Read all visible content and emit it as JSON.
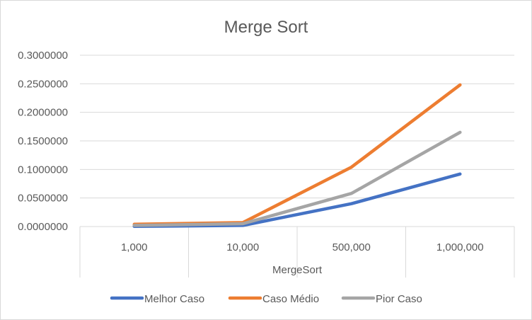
{
  "chart_data": {
    "type": "line",
    "title": "Merge Sort",
    "xlabel": "MergeSort",
    "ylabel": "",
    "categories": [
      "1,000",
      "10,000",
      "500,000",
      "1,000,000"
    ],
    "y_ticks": [
      "0.0000000",
      "0.0500000",
      "0.1000000",
      "0.1500000",
      "0.2000000",
      "0.2500000",
      "0.3000000"
    ],
    "ylim": [
      0,
      0.3
    ],
    "grid": true,
    "legend_position": "bottom",
    "series": [
      {
        "name": "Melhor Caso",
        "color": "#4472c4",
        "values": [
          0.0003,
          0.002,
          0.04,
          0.092
        ]
      },
      {
        "name": "Caso Médio",
        "color": "#ed7d31",
        "values": [
          0.004,
          0.007,
          0.104,
          0.248
        ]
      },
      {
        "name": "Pior Caso",
        "color": "#a5a5a5",
        "values": [
          0.002,
          0.005,
          0.058,
          0.165
        ]
      }
    ]
  }
}
